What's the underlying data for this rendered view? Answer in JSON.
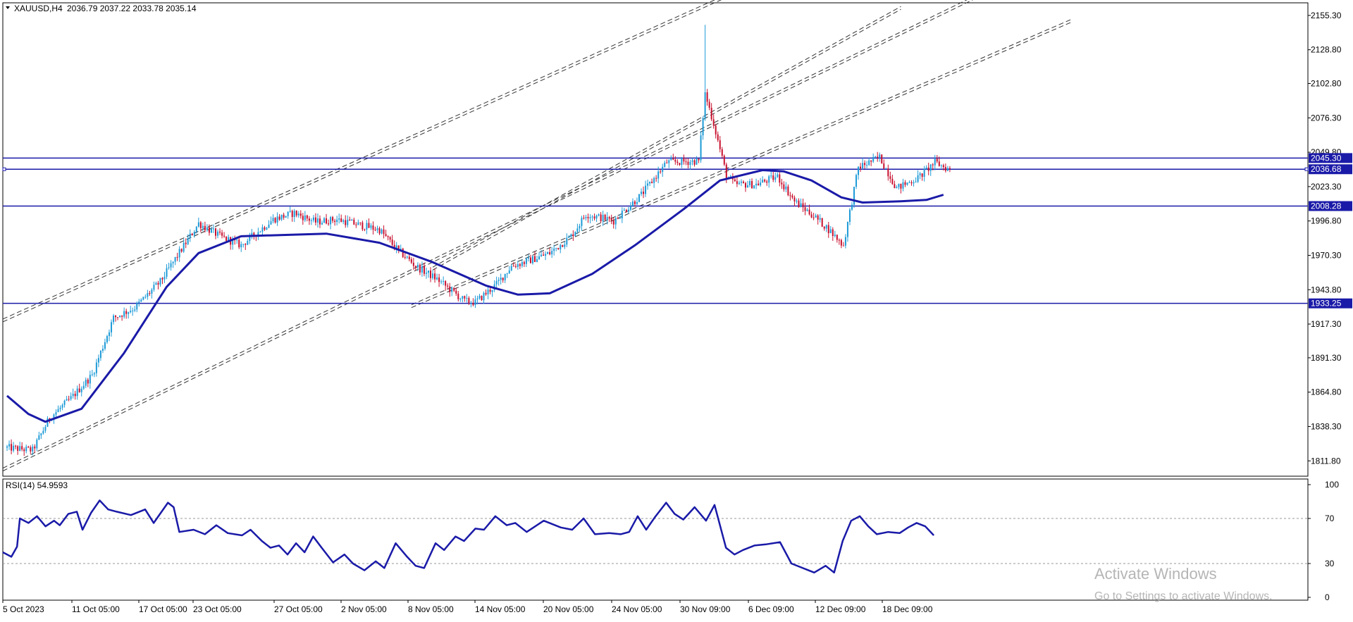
{
  "main_header": {
    "symbol": "XAUUSD,H4",
    "ohlc": "2036.79 2037.22 2033.78 2035.14"
  },
  "rsi_header": {
    "label": "RSI(14) 54.9593"
  },
  "watermark": {
    "line1": "Activate Windows",
    "line2": "Go to Settings to activate Windows."
  },
  "colors": {
    "bull": "#1e9bd7",
    "bear": "#c8102e",
    "ma": "#1a1aa8",
    "level": "#1a1aa8",
    "channel": "#333333",
    "axis": "#000000",
    "watermark": "#b0b0b0"
  },
  "chart_data": [
    {
      "type": "candlestick",
      "series_name": "XAUUSD,H4",
      "ylim": [
        1800,
        2165
      ],
      "y_ticks": [
        2155.3,
        2128.8,
        2102.8,
        2076.3,
        2049.8,
        2023.3,
        1996.8,
        1970.3,
        1943.8,
        1917.3,
        1891.3,
        1864.8,
        1838.3,
        1811.8
      ],
      "x_labels": [
        "5 Oct 2023",
        "11 Oct 05:00",
        "17 Oct 05:00",
        "23 Oct 05:00",
        "27 Oct 05:00",
        "2 Nov 05:00",
        "8 Nov 05:00",
        "14 Nov 05:00",
        "20 Nov 05:00",
        "24 Nov 05:00",
        "30 Nov 09:00",
        "6 Dec 09:00",
        "12 Dec 09:00",
        "18 Dec 09:00"
      ],
      "price_path": [
        [
          0,
          1822
        ],
        [
          12,
          1820
        ],
        [
          20,
          1845
        ],
        [
          30,
          1860
        ],
        [
          40,
          1878
        ],
        [
          50,
          1922
        ],
        [
          60,
          1930
        ],
        [
          72,
          1950
        ],
        [
          90,
          1995
        ],
        [
          100,
          1985
        ],
        [
          110,
          1978
        ],
        [
          125,
          1998
        ],
        [
          135,
          2003
        ],
        [
          145,
          1996
        ],
        [
          155,
          1998
        ],
        [
          175,
          1990
        ],
        [
          182,
          1977
        ],
        [
          192,
          1962
        ],
        [
          202,
          1952
        ],
        [
          215,
          1935
        ],
        [
          220,
          1934
        ],
        [
          230,
          1948
        ],
        [
          237,
          1962
        ],
        [
          245,
          1966
        ],
        [
          255,
          1972
        ],
        [
          265,
          1985
        ],
        [
          272,
          2002
        ],
        [
          285,
          1997
        ],
        [
          298,
          2017
        ],
        [
          310,
          2042
        ],
        [
          325,
          2043
        ],
        [
          328,
          2095
        ],
        [
          332,
          2072
        ],
        [
          338,
          2032
        ],
        [
          342,
          2025
        ],
        [
          352,
          2025
        ],
        [
          362,
          2031
        ],
        [
          370,
          2012
        ],
        [
          378,
          2002
        ],
        [
          385,
          1992
        ],
        [
          393,
          1978
        ],
        [
          400,
          2038
        ],
        [
          410,
          2046
        ],
        [
          418,
          2022
        ],
        [
          428,
          2030
        ],
        [
          436,
          2042
        ],
        [
          442,
          2037
        ],
        [
          444,
          2035
        ]
      ],
      "candles_count": 444,
      "spike": {
        "index": 328,
        "high": 2148
      },
      "moving_average": {
        "label": "",
        "points": [
          [
            0,
            1862
          ],
          [
            10,
            1848
          ],
          [
            18,
            1842
          ],
          [
            35,
            1852
          ],
          [
            55,
            1895
          ],
          [
            75,
            1946
          ],
          [
            90,
            1972
          ],
          [
            110,
            1985
          ],
          [
            150,
            1987
          ],
          [
            175,
            1980
          ],
          [
            200,
            1965
          ],
          [
            225,
            1947
          ],
          [
            240,
            1940
          ],
          [
            255,
            1941
          ],
          [
            275,
            1956
          ],
          [
            295,
            1978
          ],
          [
            318,
            2006
          ],
          [
            335,
            2028
          ],
          [
            355,
            2036
          ],
          [
            365,
            2035
          ],
          [
            378,
            2028
          ],
          [
            392,
            2015
          ],
          [
            402,
            2011
          ],
          [
            420,
            2012
          ],
          [
            432,
            2013
          ],
          [
            440,
            2017
          ]
        ]
      },
      "horizontal_levels": [
        2045.3,
        2036.68,
        2008.28,
        1933.25
      ],
      "channel_lines": [
        {
          "from": [
            -2,
            1919
          ],
          "to": [
            380,
            2200
          ],
          "pair_offset": 4
        },
        {
          "from": [
            -2,
            1804
          ],
          "to": [
            570,
            2260
          ],
          "pair_offset": 4
        },
        {
          "from": [
            200,
            1959
          ],
          "to": [
            420,
            2160
          ],
          "pair_offset": 4
        },
        {
          "from": [
            190,
            1930
          ],
          "to": [
            500,
            2150
          ],
          "pair_offset": 4
        }
      ]
    },
    {
      "type": "line",
      "series_name": "RSI(14) 54.9593",
      "ylim": [
        0,
        100
      ],
      "y_ticks": [
        100,
        70,
        30,
        0
      ],
      "levels": [
        70,
        30
      ],
      "values": [
        [
          0,
          40
        ],
        [
          6,
          36
        ],
        [
          10,
          45
        ],
        [
          12,
          70
        ],
        [
          18,
          66
        ],
        [
          24,
          72
        ],
        [
          30,
          63
        ],
        [
          36,
          68
        ],
        [
          40,
          64
        ],
        [
          46,
          74
        ],
        [
          52,
          76
        ],
        [
          56,
          60
        ],
        [
          62,
          75
        ],
        [
          68,
          86
        ],
        [
          74,
          78
        ],
        [
          80,
          76
        ],
        [
          90,
          73
        ],
        [
          100,
          78
        ],
        [
          106,
          66
        ],
        [
          116,
          84
        ],
        [
          120,
          80
        ],
        [
          124,
          58
        ],
        [
          134,
          60
        ],
        [
          142,
          56
        ],
        [
          150,
          64
        ],
        [
          158,
          57
        ],
        [
          168,
          55
        ],
        [
          174,
          60
        ],
        [
          182,
          50
        ],
        [
          188,
          44
        ],
        [
          194,
          46
        ],
        [
          200,
          38
        ],
        [
          206,
          48
        ],
        [
          212,
          40
        ],
        [
          218,
          54
        ],
        [
          224,
          44
        ],
        [
          232,
          31
        ],
        [
          240,
          38
        ],
        [
          246,
          30
        ],
        [
          254,
          24
        ],
        [
          262,
          32
        ],
        [
          268,
          26
        ],
        [
          276,
          48
        ],
        [
          284,
          36
        ],
        [
          290,
          28
        ],
        [
          296,
          26
        ],
        [
          304,
          48
        ],
        [
          310,
          42
        ],
        [
          318,
          54
        ],
        [
          324,
          50
        ],
        [
          332,
          61
        ],
        [
          338,
          60
        ],
        [
          346,
          72
        ],
        [
          354,
          64
        ],
        [
          360,
          66
        ],
        [
          368,
          58
        ],
        [
          380,
          68
        ],
        [
          392,
          62
        ],
        [
          400,
          60
        ],
        [
          408,
          70
        ],
        [
          416,
          56
        ],
        [
          426,
          57
        ],
        [
          434,
          56
        ],
        [
          440,
          58
        ],
        [
          446,
          72
        ],
        [
          452,
          60
        ],
        [
          458,
          71
        ],
        [
          466,
          84
        ],
        [
          472,
          74
        ],
        [
          478,
          69
        ],
        [
          486,
          80
        ],
        [
          494,
          68
        ],
        [
          500,
          82
        ],
        [
          508,
          44
        ],
        [
          514,
          38
        ],
        [
          520,
          42
        ],
        [
          528,
          46
        ],
        [
          536,
          47
        ],
        [
          546,
          49
        ],
        [
          554,
          30
        ],
        [
          562,
          26
        ],
        [
          570,
          22
        ],
        [
          578,
          28
        ],
        [
          584,
          22
        ],
        [
          590,
          50
        ],
        [
          596,
          68
        ],
        [
          602,
          72
        ],
        [
          608,
          63
        ],
        [
          614,
          56
        ],
        [
          622,
          58
        ],
        [
          630,
          57
        ],
        [
          636,
          62
        ],
        [
          642,
          66
        ],
        [
          648,
          63
        ],
        [
          654,
          55
        ]
      ]
    }
  ]
}
